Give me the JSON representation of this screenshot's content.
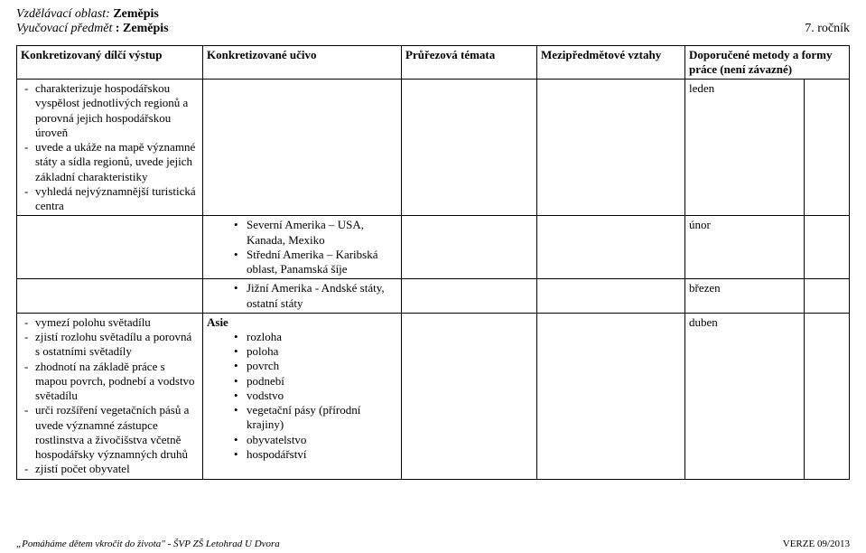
{
  "header": {
    "area_label": "Vzdělávací oblast:",
    "area_value": "Zeměpis",
    "subject_label": "Vyučovací předmět",
    "subject_value": ": Zeměpis",
    "grade": "7. ročník"
  },
  "columns": {
    "c1": "Konkretizovaný dílčí výstup",
    "c2": "Konkretizované učivo",
    "c3": "Průřezová témata",
    "c4": "Mezipředmětové vztahy",
    "c5": "Doporučené metody a formy práce (není závazné)"
  },
  "row1": {
    "outcomes": [
      "charakterizuje hospodářskou vyspělost jednotlivých regionů a porovná jejich hospodářskou úroveň",
      "uvede a ukáže na mapě významné státy a sídla regionů, uvede jejich základní charakteristiky",
      "vyhledá nejvýznamnější turistická centra"
    ],
    "month": "leden"
  },
  "row2": {
    "topics": [
      "Severní Amerika – USA, Kanada, Mexiko",
      "Střední Amerika – Karibská oblast, Panamská šíje"
    ],
    "month": "únor"
  },
  "row3": {
    "topics": [
      "Jižní Amerika - Andské státy, ostatní státy"
    ],
    "month": "březen"
  },
  "row4": {
    "outcomes": [
      "vymezí polohu světadílu",
      "zjistí rozlohu světadílu a porovná s ostatními světadíly",
      "zhodnotí na základě práce s mapou povrch, podnebí a vodstvo světadílu",
      "urči rozšíření vegetačních pásů a uvede významné zástupce rostlinstva a živočišstva včetně hospodářsky významných druhů",
      "zjistí počet obyvatel"
    ],
    "section": "Asie",
    "topics": [
      "rozloha",
      "poloha",
      "povrch",
      "podnebí",
      "vodstvo",
      "vegetační pásy (přírodní krajiny)",
      "obyvatelstvo",
      "hospodářství"
    ],
    "month": "duben"
  },
  "footer": {
    "left": "„Pomáháme dětem vkročit do života\" - ŠVP ZŠ Letohrad U Dvora",
    "right": "VERZE 09/2013"
  }
}
